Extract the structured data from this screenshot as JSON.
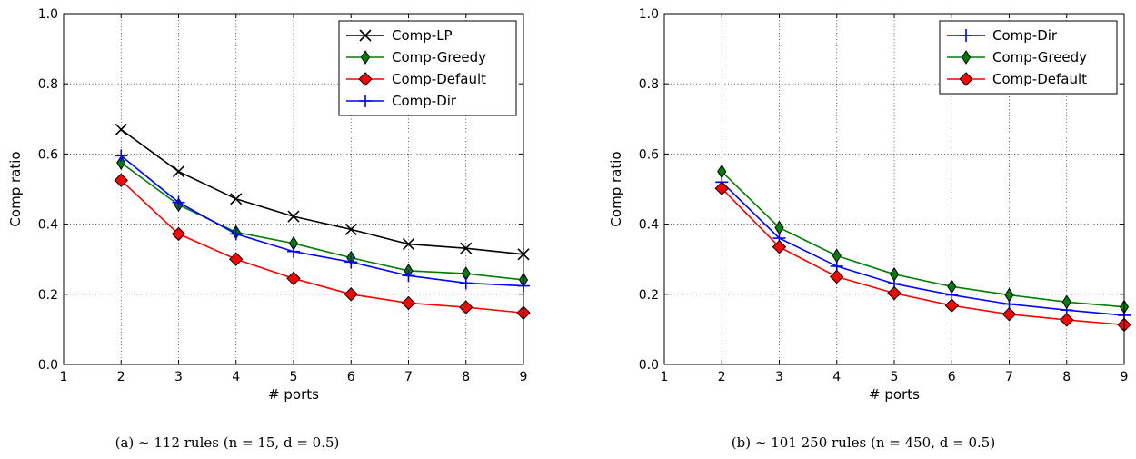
{
  "chart_data": [
    {
      "type": "line",
      "caption": "(a) ∼ 112 rules (n = 15, d = 0.5)",
      "xlabel": "# ports",
      "ylabel": "Comp ratio",
      "xlim": [
        1,
        9
      ],
      "ylim": [
        0.0,
        1.0
      ],
      "xticks": [
        "1",
        "2",
        "3",
        "4",
        "5",
        "6",
        "7",
        "8",
        "9"
      ],
      "yticks": [
        "0.0",
        "0.2",
        "0.4",
        "0.6",
        "0.8",
        "1.0"
      ],
      "grid": true,
      "legend_position": "top-right",
      "x": [
        2,
        3,
        4,
        5,
        6,
        7,
        8,
        9
      ],
      "series": [
        {
          "name": "Comp-LP",
          "color": "#000000",
          "marker": "x",
          "values": [
            0.67,
            0.55,
            0.472,
            0.422,
            0.385,
            0.343,
            0.331,
            0.314
          ]
        },
        {
          "name": "Comp-Greedy",
          "color": "#008000",
          "marker": "thin-diamond",
          "values": [
            0.575,
            0.455,
            0.377,
            0.345,
            0.304,
            0.267,
            0.259,
            0.241
          ]
        },
        {
          "name": "Comp-Default",
          "color": "#ff0000",
          "marker": "diamond",
          "values": [
            0.525,
            0.372,
            0.3,
            0.245,
            0.2,
            0.175,
            0.163,
            0.147
          ]
        },
        {
          "name": "Comp-Dir",
          "color": "#0000ff",
          "marker": "plus",
          "values": [
            0.595,
            0.462,
            0.372,
            0.322,
            0.292,
            0.253,
            0.232,
            0.224
          ]
        }
      ]
    },
    {
      "type": "line",
      "caption": "(b) ∼ 101 250 rules (n = 450, d = 0.5)",
      "xlabel": "# ports",
      "ylabel": "Comp ratio",
      "xlim": [
        1,
        9
      ],
      "ylim": [
        0.0,
        1.0
      ],
      "xticks": [
        "1",
        "2",
        "3",
        "4",
        "5",
        "6",
        "7",
        "8",
        "9"
      ],
      "yticks": [
        "0.0",
        "0.2",
        "0.4",
        "0.6",
        "0.8",
        "1.0"
      ],
      "grid": true,
      "legend_position": "top-right",
      "x": [
        2,
        3,
        4,
        5,
        6,
        7,
        8,
        9
      ],
      "series": [
        {
          "name": "Comp-Dir",
          "color": "#0000ff",
          "marker": "plus",
          "values": [
            0.52,
            0.36,
            0.28,
            0.23,
            0.198,
            0.172,
            0.155,
            0.14
          ]
        },
        {
          "name": "Comp-Greedy",
          "color": "#008000",
          "marker": "thin-diamond",
          "values": [
            0.55,
            0.39,
            0.31,
            0.257,
            0.222,
            0.198,
            0.178,
            0.164
          ]
        },
        {
          "name": "Comp-Default",
          "color": "#ff0000",
          "marker": "diamond",
          "values": [
            0.502,
            0.335,
            0.25,
            0.203,
            0.168,
            0.143,
            0.127,
            0.113
          ]
        }
      ]
    }
  ]
}
